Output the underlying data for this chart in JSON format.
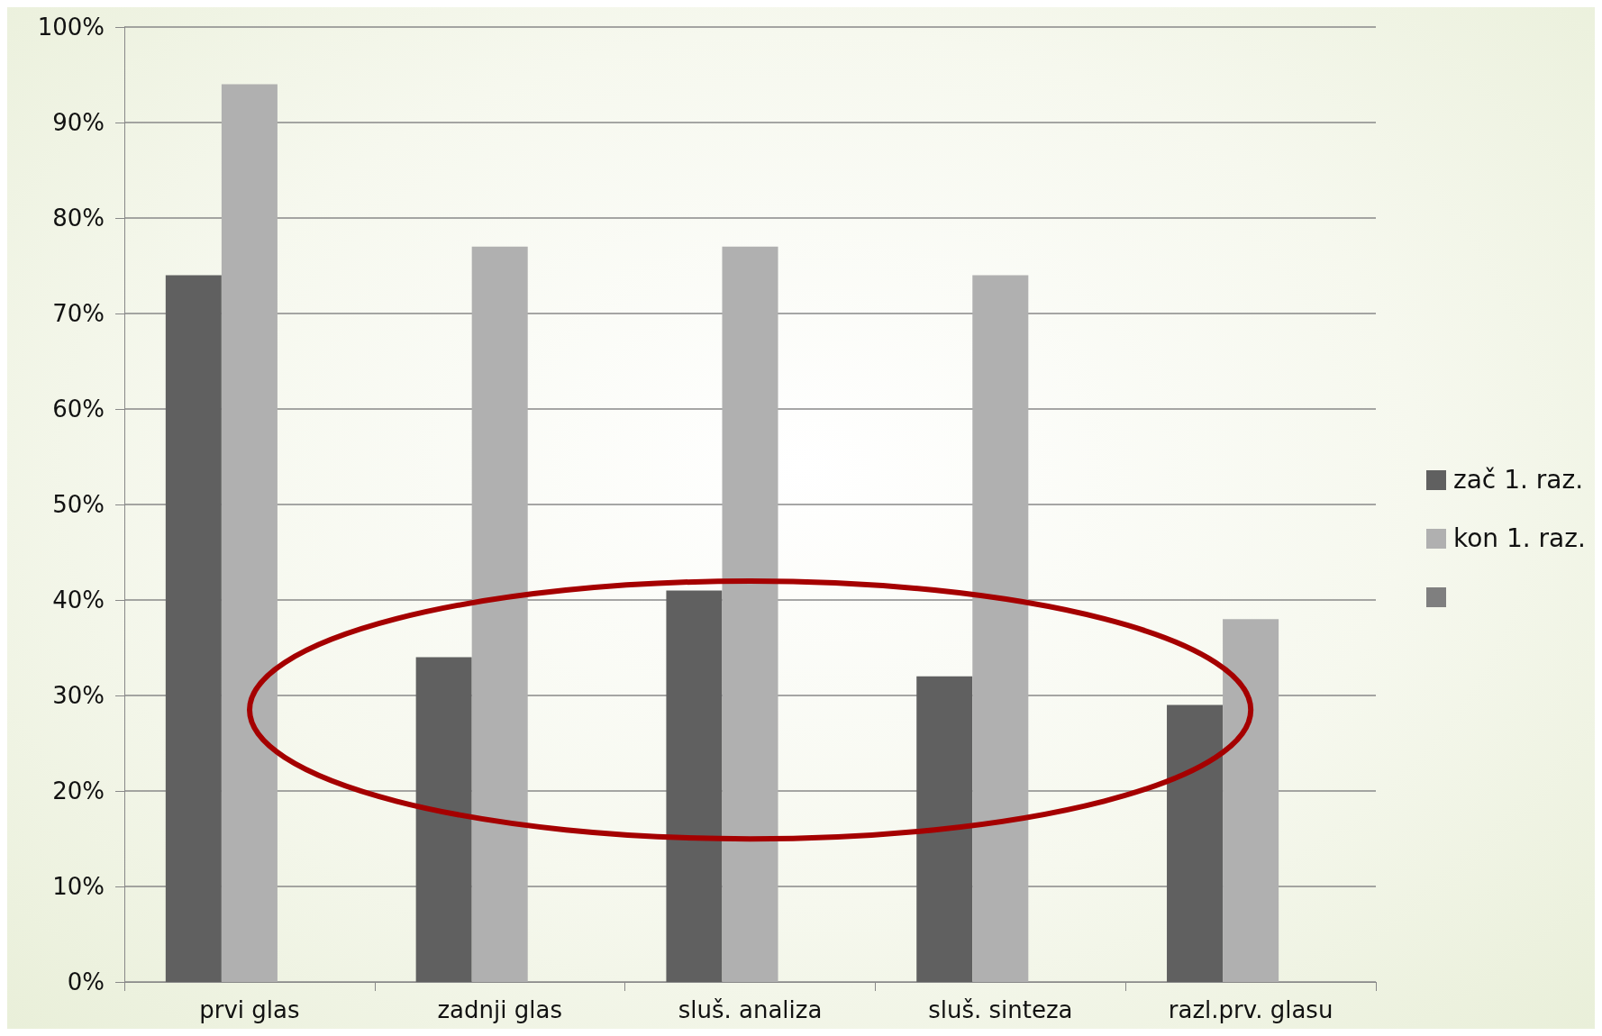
{
  "chart_data": {
    "type": "bar",
    "categories": [
      "prvi glas",
      "zadnji glas",
      "sluš. analiza",
      "sluš. sinteza",
      "razl.prv. glasu"
    ],
    "series": [
      {
        "name": "zač 1. raz.",
        "color": "#606060",
        "values": [
          74,
          34,
          41,
          32,
          29
        ]
      },
      {
        "name": "kon 1. raz.",
        "color": "#b0b0b0",
        "values": [
          94,
          77,
          77,
          74,
          38
        ]
      },
      {
        "color": "#7f7f7f",
        "values": [
          null,
          null,
          null,
          null,
          null
        ]
      }
    ],
    "ylim": [
      0,
      100
    ],
    "yticks": [
      {
        "value": 0,
        "label": "0%"
      },
      {
        "value": 10,
        "label": "10%"
      },
      {
        "value": 20,
        "label": "20%"
      },
      {
        "value": 30,
        "label": "30%"
      },
      {
        "value": 40,
        "label": "40%"
      },
      {
        "value": 50,
        "label": "50%"
      },
      {
        "value": 60,
        "label": "60%"
      },
      {
        "value": 70,
        "label": "70%"
      },
      {
        "value": 80,
        "label": "80%"
      },
      {
        "value": 90,
        "label": "90%"
      },
      {
        "value": 100,
        "label": "100%"
      }
    ],
    "grid": "y",
    "legend": "right"
  }
}
